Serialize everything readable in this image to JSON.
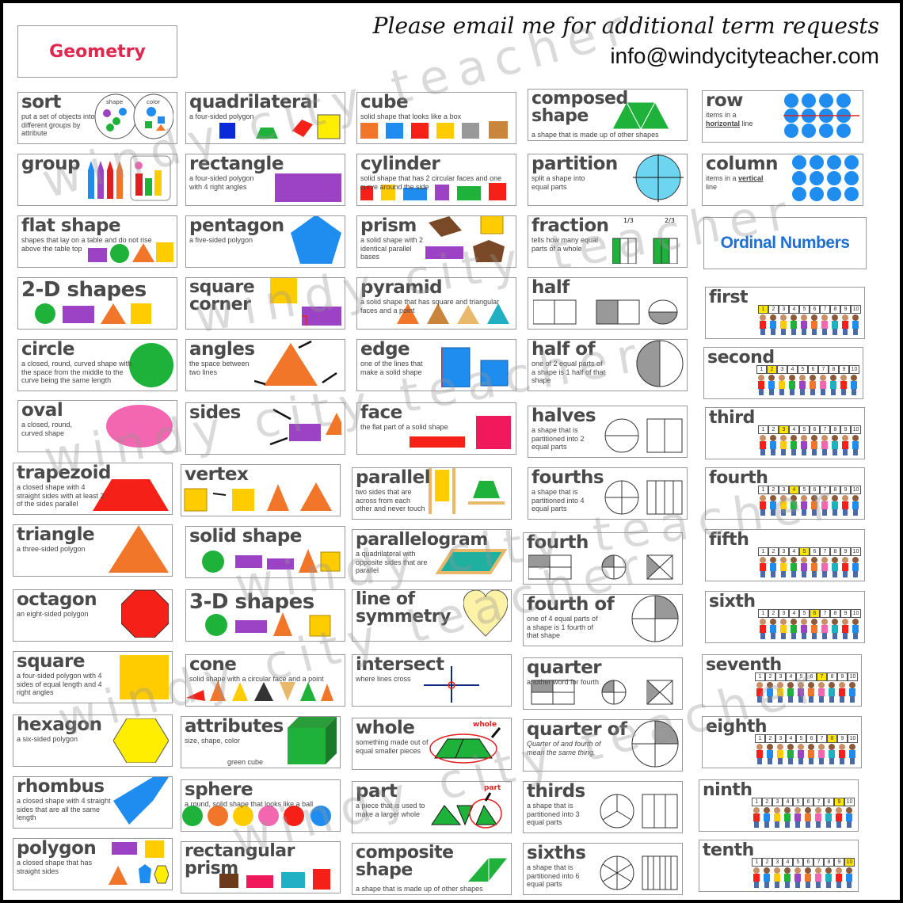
{
  "title": "Geometry",
  "header": {
    "request": "Please email me for additional term requests",
    "email": "info@windycityteacher.com"
  },
  "watermark": "windy city teacher",
  "ordinal_header": "Ordinal Numbers",
  "colors": {
    "title": "#e0284f",
    "ordinal_header": "#1e6fd0",
    "green": "#1fb23a",
    "purple": "#9b43c4",
    "orange": "#f2762a",
    "yellow": "#ffcc00",
    "blue": "#1f8cf0",
    "red": "#f52018",
    "pink": "#f267b0"
  },
  "cards": {
    "sort": {
      "term": "sort",
      "def": "put a set of objects into different groups by attribute",
      "label_a": "shape",
      "label_b": "color"
    },
    "group": {
      "term": "group",
      "def": ""
    },
    "flat_shape": {
      "term": "flat shape",
      "def": "shapes that lay on a table and do not rise above the table top"
    },
    "two_d": {
      "term": "2-D shapes",
      "def": ""
    },
    "circle": {
      "term": "circle",
      "def": "a closed, round, curved shape with the space from the middle to the curve being the same length"
    },
    "oval": {
      "term": "oval",
      "def": "a closed, round, curved shape"
    },
    "trapezoid": {
      "term": "trapezoid",
      "def": "a closed shape with 4 straight sides with at least 2 of the sides parallel"
    },
    "triangle": {
      "term": "triangle",
      "def": "a three-sided polygon"
    },
    "octagon": {
      "term": "octagon",
      "def": "an eight-sided polygon"
    },
    "square": {
      "term": "square",
      "def": "a four-sided polygon with 4 sides of equal length and 4 right angles"
    },
    "hexagon": {
      "term": "hexagon",
      "def": "a six-sided polygon"
    },
    "rhombus": {
      "term": "rhombus",
      "def": "a closed shape with 4 straight sides that are all the same length"
    },
    "polygon": {
      "term": "polygon",
      "def": "a closed shape that has straight sides"
    },
    "quadrilateral": {
      "term": "quadrilateral",
      "def": "a four-sided polygon"
    },
    "rectangle": {
      "term": "rectangle",
      "def": "a four-sided polygon with 4 right angles"
    },
    "pentagon": {
      "term": "pentagon",
      "def": "a five-sided polygon"
    },
    "square_corner": {
      "term": "square corner",
      "def": ""
    },
    "angles": {
      "term": "angles",
      "def": "the space between two lines"
    },
    "sides": {
      "term": "sides",
      "def": ""
    },
    "vertex": {
      "term": "vertex",
      "def": ""
    },
    "solid_shape": {
      "term": "solid shape",
      "def": ""
    },
    "three_d": {
      "term": "3-D shapes",
      "def": ""
    },
    "cone": {
      "term": "cone",
      "def": "solid shape with a circular face and a point"
    },
    "attributes": {
      "term": "attributes",
      "def": "size, shape, color",
      "caption": "green cube"
    },
    "sphere": {
      "term": "sphere",
      "def": "a round, solid shape that looks like a ball"
    },
    "rect_prism": {
      "term": "rectangular prism",
      "def": ""
    },
    "cube": {
      "term": "cube",
      "def": "solid shape that looks like a box"
    },
    "cylinder": {
      "term": "cylinder",
      "def": "solid shape that has 2 circular faces and one curve around the side"
    },
    "prism": {
      "term": "prism",
      "def": "a solid shape with 2 identical parallel bases"
    },
    "pyramid": {
      "term": "pyramid",
      "def": "a solid shape that has square and triangular faces and a point"
    },
    "edge": {
      "term": "edge",
      "def": "one of the lines that make a solid shape"
    },
    "face": {
      "term": "face",
      "def": "the flat part of a solid shape"
    },
    "parallel": {
      "term": "parallel",
      "def": "two sides that are across from each other and never touch"
    },
    "parallelogram": {
      "term": "parallelogram",
      "def": "a quadrilateral with opposite sides that are parallel"
    },
    "line_symmetry": {
      "term": "line of symmetry",
      "def": ""
    },
    "intersect": {
      "term": "intersect",
      "def": "where lines cross"
    },
    "whole": {
      "term": "whole",
      "def": "something made out of equal smaller pieces",
      "tag": "whole"
    },
    "part": {
      "term": "part",
      "def": "a piece that is used to make a larger whole",
      "tag": "part"
    },
    "composite_shape": {
      "term": "composite shape",
      "def": "a shape that is made up of other shapes"
    },
    "composed_shape": {
      "term": "composed shape",
      "def": "a shape that is made up of other shapes"
    },
    "partition": {
      "term": "partition",
      "def": "split a shape into equal parts"
    },
    "fraction": {
      "term": "fraction",
      "def": "tells how many equal parts of a whole",
      "frac_a": "1/3",
      "frac_b": "2/3"
    },
    "half": {
      "term": "half",
      "def": ""
    },
    "half_of": {
      "term": "half of",
      "def": "one of 2 equal parts of a shape is 1 half of that shape"
    },
    "halves": {
      "term": "halves",
      "def": "a shape that is partitioned into 2 equal parts"
    },
    "fourths": {
      "term": "fourths",
      "def": "a shape that is partitioned into 4 equal parts"
    },
    "fourth": {
      "term": "fourth",
      "def": ""
    },
    "fourth_of": {
      "term": "fourth of",
      "def": "one of 4 equal parts of a shape is 1 fourth of that shape"
    },
    "quarter": {
      "term": "quarter",
      "def": "another word for fourth"
    },
    "quarter_of": {
      "term": "quarter of",
      "def": "Quarter of and fourth of mean the same thing."
    },
    "thirds": {
      "term": "thirds",
      "def": "a shape that is partitioned into 3 equal parts"
    },
    "sixths": {
      "term": "sixths",
      "def": "a shape that is partitioned into 6 equal parts"
    },
    "row": {
      "term": "row",
      "def_pre": "items in a",
      "def_key": "horizontal",
      "def_post": "line"
    },
    "column": {
      "term": "column",
      "def_pre": "items in a",
      "def_key": "vertical",
      "def_post": "line"
    }
  },
  "ordinals": [
    {
      "term": "first",
      "highlight": 1
    },
    {
      "term": "second",
      "highlight": 2
    },
    {
      "term": "third",
      "highlight": 3
    },
    {
      "term": "fourth",
      "highlight": 4
    },
    {
      "term": "fifth",
      "highlight": 5
    },
    {
      "term": "sixth",
      "highlight": 6
    },
    {
      "term": "seventh",
      "highlight": 7
    },
    {
      "term": "eighth",
      "highlight": 8
    },
    {
      "term": "ninth",
      "highlight": 9
    },
    {
      "term": "tenth",
      "highlight": 10
    }
  ],
  "number_line": [
    "1",
    "2",
    "3",
    "4",
    "5",
    "6",
    "7",
    "8",
    "9",
    "10"
  ]
}
